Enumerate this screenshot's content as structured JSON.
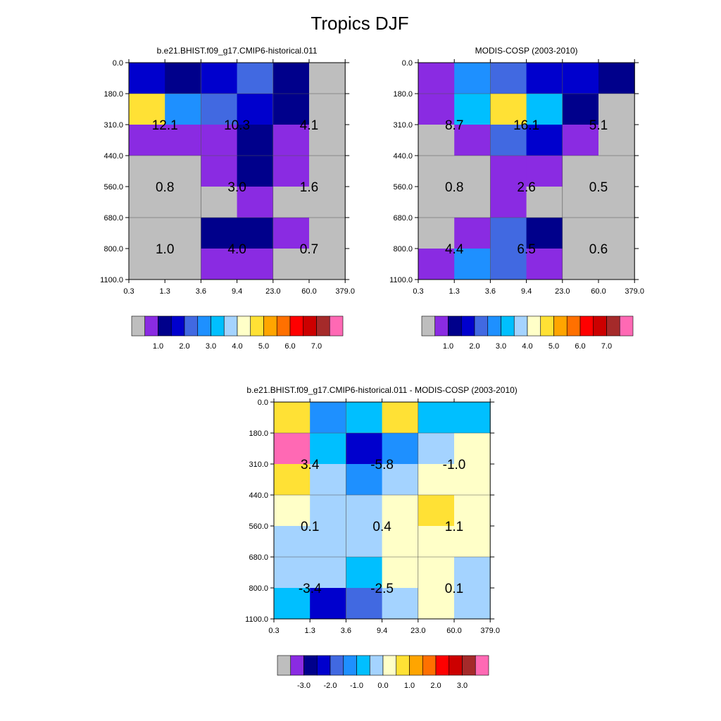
{
  "page": {
    "title": "Tropics DJF"
  },
  "chart_data": [
    {
      "type": "heatmap",
      "title": "b.e21.BHIST.f09_g17.CMIP6-historical.011",
      "x_tick_labels": [
        "0.3",
        "1.3",
        "3.6",
        "9.4",
        "23.0",
        "60.0",
        "379.0"
      ],
      "y_tick_labels": [
        "0.0",
        "180.0",
        "310.0",
        "440.0",
        "560.0",
        "680.0",
        "800.0",
        "1100.0"
      ],
      "cell_colors": [
        [
          "#0000cd",
          "#00008b",
          "#0000cd",
          "#4169e1",
          "#00008b",
          "#bebebe"
        ],
        [
          "#ffe135",
          "#1e90ff",
          "#4169e1",
          "#0000cd",
          "#00008b",
          "#bebebe"
        ],
        [
          "#8a2be2",
          "#8a2be2",
          "#8a2be2",
          "#00008b",
          "#8a2be2",
          "#bebebe"
        ],
        [
          "#bebebe",
          "#bebebe",
          "#8a2be2",
          "#00008b",
          "#8a2be2",
          "#bebebe"
        ],
        [
          "#bebebe",
          "#bebebe",
          "#bebebe",
          "#8a2be2",
          "#bebebe",
          "#bebebe"
        ],
        [
          "#bebebe",
          "#bebebe",
          "#00008b",
          "#00008b",
          "#8a2be2",
          "#bebebe"
        ],
        [
          "#bebebe",
          "#bebebe",
          "#8a2be2",
          "#8a2be2",
          "#bebebe",
          "#bebebe"
        ]
      ],
      "block_labels": [
        [
          "12.1",
          "10.3",
          "4.1"
        ],
        [
          "0.8",
          "3.0",
          "1.6"
        ],
        [
          "1.0",
          "4.0",
          "0.7"
        ]
      ],
      "colorbar": {
        "colors": [
          "#bebebe",
          "#8a2be2",
          "#00008b",
          "#0000cd",
          "#4169e1",
          "#1e90ff",
          "#00bfff",
          "#a4d3ff",
          "#ffffc8",
          "#ffe135",
          "#ffa500",
          "#ff7000",
          "#ff0000",
          "#cc0000",
          "#a52a2a",
          "#ff69b4"
        ],
        "tick_labels": [
          "1.0",
          "2.0",
          "3.0",
          "4.0",
          "5.0",
          "6.0",
          "7.0"
        ]
      }
    },
    {
      "type": "heatmap",
      "title": "MODIS-COSP (2003-2010)",
      "x_tick_labels": [
        "0.3",
        "1.3",
        "3.6",
        "9.4",
        "23.0",
        "60.0",
        "379.0"
      ],
      "y_tick_labels": [
        "0.0",
        "180.0",
        "310.0",
        "440.0",
        "560.0",
        "680.0",
        "800.0",
        "1100.0"
      ],
      "cell_colors": [
        [
          "#8a2be2",
          "#1e90ff",
          "#4169e1",
          "#0000cd",
          "#0000cd",
          "#00008b"
        ],
        [
          "#8a2be2",
          "#00bfff",
          "#ffe135",
          "#00bfff",
          "#00008b",
          "#bebebe"
        ],
        [
          "#bebebe",
          "#8a2be2",
          "#4169e1",
          "#0000cd",
          "#8a2be2",
          "#bebebe"
        ],
        [
          "#bebebe",
          "#bebebe",
          "#8a2be2",
          "#8a2be2",
          "#bebebe",
          "#bebebe"
        ],
        [
          "#bebebe",
          "#bebebe",
          "#8a2be2",
          "#bebebe",
          "#bebebe",
          "#bebebe"
        ],
        [
          "#bebebe",
          "#8a2be2",
          "#4169e1",
          "#00008b",
          "#bebebe",
          "#bebebe"
        ],
        [
          "#8a2be2",
          "#1e90ff",
          "#4169e1",
          "#8a2be2",
          "#bebebe",
          "#bebebe"
        ]
      ],
      "block_labels": [
        [
          "8.7",
          "16.1",
          "5.1"
        ],
        [
          "0.8",
          "2.6",
          "0.5"
        ],
        [
          "4.4",
          "6.5",
          "0.6"
        ]
      ],
      "colorbar": {
        "colors": [
          "#bebebe",
          "#8a2be2",
          "#00008b",
          "#0000cd",
          "#4169e1",
          "#1e90ff",
          "#00bfff",
          "#a4d3ff",
          "#ffffc8",
          "#ffe135",
          "#ffa500",
          "#ff7000",
          "#ff0000",
          "#cc0000",
          "#a52a2a",
          "#ff69b4"
        ],
        "tick_labels": [
          "1.0",
          "2.0",
          "3.0",
          "4.0",
          "5.0",
          "6.0",
          "7.0"
        ]
      }
    },
    {
      "type": "heatmap",
      "title": "b.e21.BHIST.f09_g17.CMIP6-historical.011 - MODIS-COSP (2003-2010)",
      "x_tick_labels": [
        "0.3",
        "1.3",
        "3.6",
        "9.4",
        "23.0",
        "60.0",
        "379.0"
      ],
      "y_tick_labels": [
        "0.0",
        "180.0",
        "310.0",
        "440.0",
        "560.0",
        "680.0",
        "800.0",
        "1100.0"
      ],
      "cell_colors": [
        [
          "#ffe135",
          "#1e90ff",
          "#00bfff",
          "#ffe135",
          "#00bfff",
          "#00bfff"
        ],
        [
          "#ff69b4",
          "#00bfff",
          "#0000cd",
          "#1e90ff",
          "#a4d3ff",
          "#ffffc8"
        ],
        [
          "#ffe135",
          "#a4d3ff",
          "#1e90ff",
          "#a4d3ff",
          "#ffffc8",
          "#ffffc8"
        ],
        [
          "#ffffc8",
          "#a4d3ff",
          "#a4d3ff",
          "#ffffc8",
          "#ffe135",
          "#ffffc8"
        ],
        [
          "#a4d3ff",
          "#a4d3ff",
          "#a4d3ff",
          "#ffffc8",
          "#ffffc8",
          "#ffffc8"
        ],
        [
          "#a4d3ff",
          "#a4d3ff",
          "#00bfff",
          "#ffffc8",
          "#ffffc8",
          "#a4d3ff"
        ],
        [
          "#00bfff",
          "#0000cd",
          "#4169e1",
          "#a4d3ff",
          "#ffffc8",
          "#a4d3ff"
        ]
      ],
      "block_labels": [
        [
          "3.4",
          "-5.8",
          "-1.0"
        ],
        [
          "0.1",
          "0.4",
          "1.1"
        ],
        [
          "-3.4",
          "-2.5",
          "0.1"
        ]
      ],
      "colorbar": {
        "colors": [
          "#bebebe",
          "#8a2be2",
          "#00008b",
          "#0000cd",
          "#4169e1",
          "#1e90ff",
          "#00bfff",
          "#a4d3ff",
          "#ffffc8",
          "#ffe135",
          "#ffa500",
          "#ff7000",
          "#ff0000",
          "#cc0000",
          "#a52a2a",
          "#ff69b4"
        ],
        "tick_labels": [
          "-3.0",
          "-2.0",
          "-1.0",
          "0.0",
          "1.0",
          "2.0",
          "3.0"
        ]
      }
    }
  ]
}
